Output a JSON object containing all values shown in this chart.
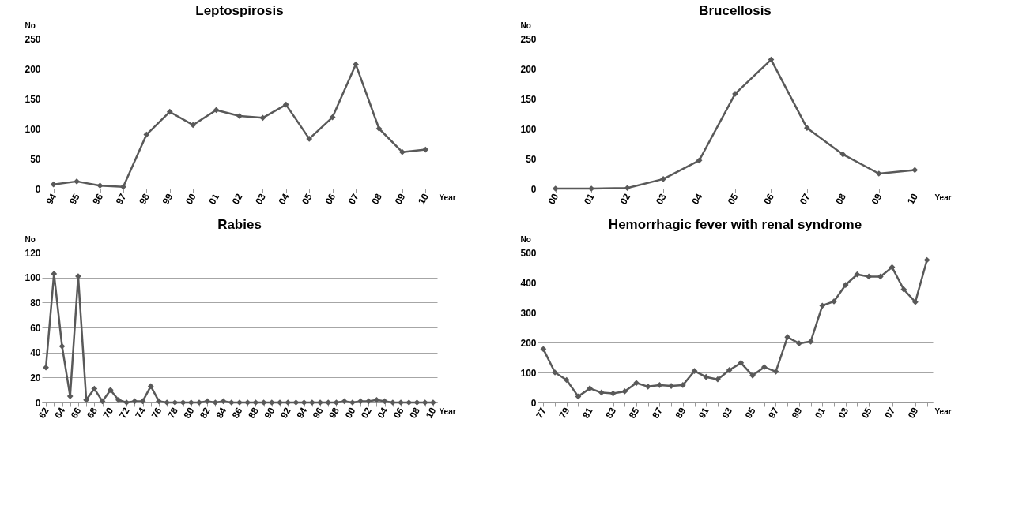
{
  "chart_data": [
    {
      "type": "line",
      "title": "Leptospirosis",
      "xlabel": "Year",
      "ylabel": "No",
      "categories": [
        "94",
        "95",
        "96",
        "97",
        "98",
        "99",
        "00",
        "01",
        "02",
        "03",
        "04",
        "05",
        "06",
        "07",
        "08",
        "09",
        "10"
      ],
      "series": [
        {
          "color": "#595959",
          "values": [
            7,
            12,
            5,
            3,
            90,
            128,
            106,
            131,
            121,
            118,
            140,
            83,
            119,
            207,
            100,
            61,
            65
          ]
        }
      ],
      "ylim": [
        0,
        250
      ],
      "yticks": [
        0,
        50,
        100,
        150,
        200,
        250
      ],
      "grid": "y",
      "marker": "diamond",
      "line_style": "solid"
    },
    {
      "type": "line",
      "title": "Brucellosis",
      "xlabel": "Year",
      "ylabel": "No",
      "categories": [
        "00",
        "01",
        "02",
        "03",
        "04",
        "05",
        "06",
        "07",
        "08",
        "09",
        "10"
      ],
      "series": [
        {
          "color": "#595959",
          "values": [
            0,
            0,
            1,
            16,
            47,
            158,
            215,
            101,
            57,
            25,
            31
          ]
        }
      ],
      "ylim": [
        0,
        250
      ],
      "yticks": [
        0,
        50,
        100,
        150,
        200,
        250
      ],
      "grid": "y",
      "marker": "diamond",
      "line_style": "solid"
    },
    {
      "type": "line",
      "title": "Rabies",
      "xlabel": "Year",
      "ylabel": "No",
      "categories": [
        "62",
        null,
        "64",
        null,
        "66",
        null,
        "68",
        null,
        "70",
        null,
        "72",
        null,
        "74",
        null,
        "76",
        null,
        "78",
        null,
        "80",
        null,
        "82",
        null,
        "84",
        null,
        "86",
        null,
        "88",
        null,
        "90",
        null,
        "92",
        null,
        "94",
        null,
        "96",
        null,
        "98",
        null,
        "00",
        null,
        "02",
        null,
        "04",
        null,
        "06",
        null,
        "08",
        null,
        "10"
      ],
      "series": [
        {
          "color": "#595959",
          "values": [
            28,
            103,
            45,
            5,
            101,
            2,
            11,
            1,
            10,
            2,
            0,
            1,
            1,
            13,
            1,
            0,
            0,
            0,
            0,
            0,
            1,
            0,
            1,
            0,
            0,
            0,
            0,
            0,
            0,
            0,
            0,
            0,
            0,
            0,
            0,
            0,
            0,
            1,
            0,
            1,
            1,
            2,
            1,
            0,
            0,
            0,
            0,
            0,
            0
          ]
        }
      ],
      "ylim": [
        0,
        120
      ],
      "yticks": [
        0,
        20,
        40,
        60,
        80,
        100,
        120
      ],
      "grid": "y",
      "marker": "diamond",
      "line_style": "solid"
    },
    {
      "type": "line",
      "title": "Hemorrhagic fever with renal syndrome",
      "xlabel": "Year",
      "ylabel": "No",
      "categories": [
        "77",
        null,
        "79",
        null,
        "81",
        null,
        "83",
        null,
        "85",
        null,
        "87",
        null,
        "89",
        null,
        "91",
        null,
        "93",
        null,
        "95",
        null,
        "97",
        null,
        "99",
        null,
        "01",
        null,
        "03",
        null,
        "05",
        null,
        "07",
        null,
        "09",
        null
      ],
      "series": [
        {
          "color": "#595959",
          "values": [
            178,
            100,
            75,
            20,
            47,
            33,
            30,
            37,
            65,
            53,
            58,
            55,
            58,
            105,
            85,
            77,
            108,
            132,
            90,
            118,
            103,
            218,
            197,
            203,
            323,
            337,
            392,
            427,
            420,
            420,
            451,
            377,
            335,
            475
          ]
        }
      ],
      "ylim": [
        0,
        500
      ],
      "yticks": [
        0,
        100,
        200,
        300,
        400,
        500
      ],
      "grid": "y",
      "marker": "diamond",
      "line_style": "solid"
    }
  ]
}
